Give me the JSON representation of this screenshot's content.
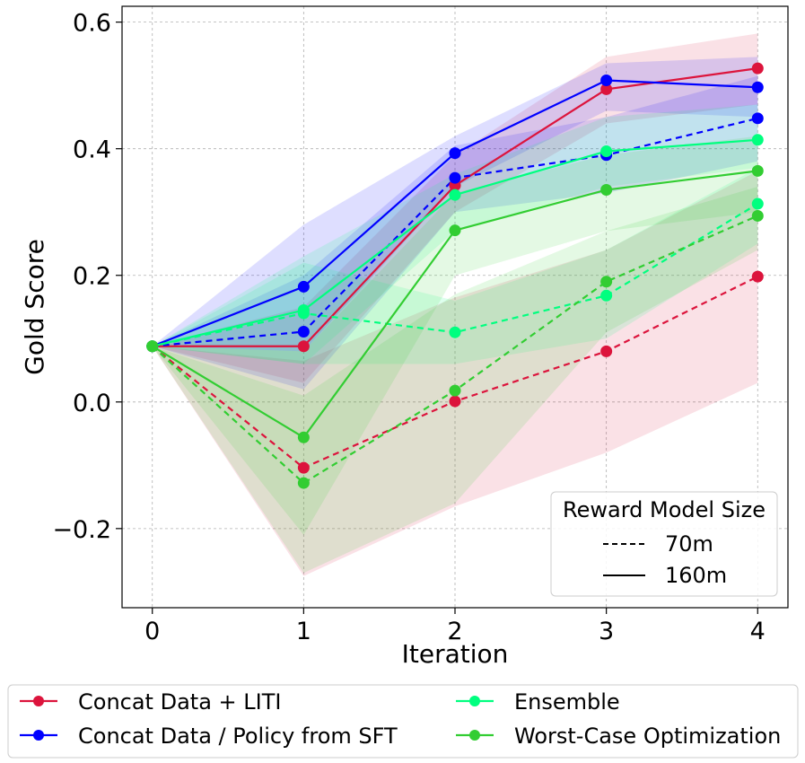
{
  "chart_data": {
    "type": "line",
    "xlabel": "Iteration",
    "ylabel": "Gold Score",
    "xlim": [
      -0.2,
      4.2
    ],
    "ylim": [
      -0.325,
      0.625
    ],
    "x": [
      0,
      1,
      2,
      3,
      4
    ],
    "x_ticks": [
      0,
      1,
      2,
      3,
      4
    ],
    "y_ticks": [
      -0.2,
      0.0,
      0.2,
      0.4,
      0.6
    ],
    "y_tick_labels": [
      "−0.2",
      "0.0",
      "0.2",
      "0.4",
      "0.6"
    ],
    "x_tick_labels": [
      "0",
      "1",
      "2",
      "3",
      "4"
    ],
    "grid": true,
    "size_legend": {
      "title": "Reward Model Size",
      "placement": "lower-right",
      "entries": [
        {
          "label": "70m",
          "style": "dashed"
        },
        {
          "label": "160m",
          "style": "solid"
        }
      ]
    },
    "method_legend": {
      "placement": "bottom-outside",
      "entries": [
        {
          "label": "Concat Data + LITI",
          "color": "#dc143c"
        },
        {
          "label": "Concat Data / Policy from SFT",
          "color": "#0000ff"
        },
        {
          "label": "Ensemble",
          "color": "#00ff7f"
        },
        {
          "label": "Worst-Case Optimization",
          "color": "#32cd32"
        }
      ]
    },
    "series": [
      {
        "name": "Concat Data + LITI",
        "size": "70m",
        "style": "dashed",
        "color": "#dc143c",
        "values": [
          0.088,
          -0.104,
          0.001,
          0.08,
          0.198
        ],
        "lower": [
          0.088,
          -0.275,
          -0.165,
          -0.08,
          0.03
        ],
        "upper": [
          0.088,
          0.065,
          0.165,
          0.24,
          0.365
        ]
      },
      {
        "name": "Concat Data + LITI",
        "size": "160m",
        "style": "solid",
        "color": "#dc143c",
        "values": [
          0.088,
          0.088,
          0.342,
          0.494,
          0.527
        ],
        "lower": [
          0.088,
          0.03,
          0.3,
          0.44,
          0.47
        ],
        "upper": [
          0.088,
          0.15,
          0.39,
          0.545,
          0.582
        ]
      },
      {
        "name": "Concat Data / Policy from SFT",
        "size": "70m",
        "style": "dashed",
        "color": "#0000ff",
        "values": [
          0.088,
          0.111,
          0.354,
          0.39,
          0.448
        ],
        "lower": [
          0.088,
          0.02,
          0.3,
          0.33,
          0.38
        ],
        "upper": [
          0.088,
          0.2,
          0.405,
          0.45,
          0.515
        ]
      },
      {
        "name": "Concat Data / Policy from SFT",
        "size": "160m",
        "style": "solid",
        "color": "#0000ff",
        "values": [
          0.088,
          0.182,
          0.393,
          0.508,
          0.497
        ],
        "lower": [
          0.088,
          0.08,
          0.34,
          0.46,
          0.45
        ],
        "upper": [
          0.088,
          0.28,
          0.42,
          0.535,
          0.545
        ]
      },
      {
        "name": "Ensemble",
        "size": "70m",
        "style": "dashed",
        "color": "#00ff7f",
        "values": [
          0.088,
          0.14,
          0.11,
          0.168,
          0.313
        ],
        "lower": [
          0.088,
          0.06,
          0.06,
          0.1,
          0.25
        ],
        "upper": [
          0.088,
          0.22,
          0.16,
          0.24,
          0.37
        ]
      },
      {
        "name": "Ensemble",
        "size": "160m",
        "style": "solid",
        "color": "#00ff7f",
        "values": [
          0.088,
          0.145,
          0.327,
          0.396,
          0.414
        ],
        "lower": [
          0.088,
          0.06,
          0.27,
          0.34,
          0.37
        ],
        "upper": [
          0.088,
          0.23,
          0.36,
          0.45,
          0.47
        ]
      },
      {
        "name": "Worst-Case Optimization",
        "size": "70m",
        "style": "dashed",
        "color": "#32cd32",
        "values": [
          0.088,
          -0.128,
          0.018,
          0.19,
          0.294
        ],
        "lower": [
          0.088,
          -0.27,
          -0.16,
          0.11,
          0.24
        ],
        "upper": [
          0.088,
          0.01,
          0.17,
          0.27,
          0.34
        ]
      },
      {
        "name": "Worst-Case Optimization",
        "size": "160m",
        "style": "solid",
        "color": "#32cd32",
        "values": [
          0.088,
          -0.056,
          0.271,
          0.335,
          0.365
        ],
        "lower": [
          0.088,
          -0.21,
          0.2,
          0.27,
          0.3
        ],
        "upper": [
          0.088,
          0.08,
          0.33,
          0.39,
          0.42
        ]
      }
    ]
  }
}
